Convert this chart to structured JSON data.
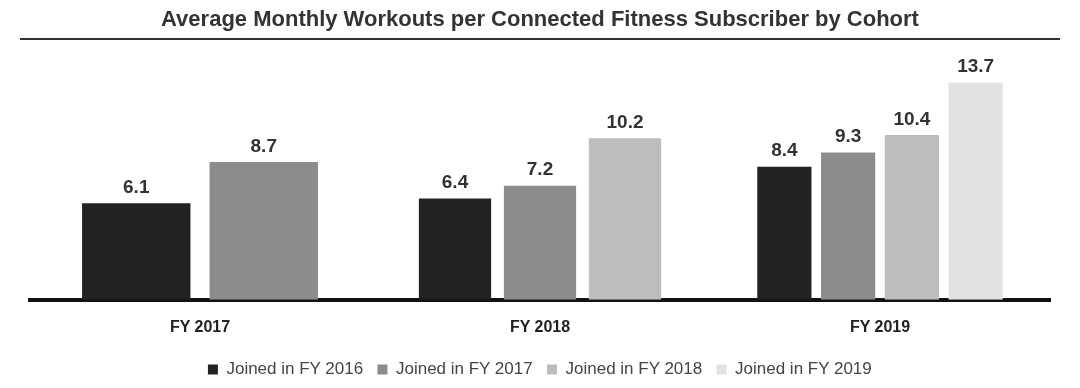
{
  "chart_data": {
    "type": "bar",
    "title": "Average Monthly Workouts per Connected Fitness Subscriber by Cohort",
    "categories": [
      "FY 2017",
      "FY 2018",
      "FY 2019"
    ],
    "series": [
      {
        "name": "Joined in FY 2016",
        "color": "#222222",
        "values": [
          6.1,
          6.4,
          8.4
        ]
      },
      {
        "name": "Joined in FY 2017",
        "color": "#8c8c8c",
        "values": [
          8.7,
          7.2,
          9.3
        ]
      },
      {
        "name": "Joined in FY 2018",
        "color": "#bdbdbd",
        "values": [
          null,
          10.2,
          10.4
        ]
      },
      {
        "name": "Joined in FY 2019",
        "color": "#e2e2e2",
        "values": [
          null,
          null,
          13.7
        ]
      }
    ],
    "data_labels": true,
    "legend": "bottom",
    "tick_labels": "x"
  }
}
